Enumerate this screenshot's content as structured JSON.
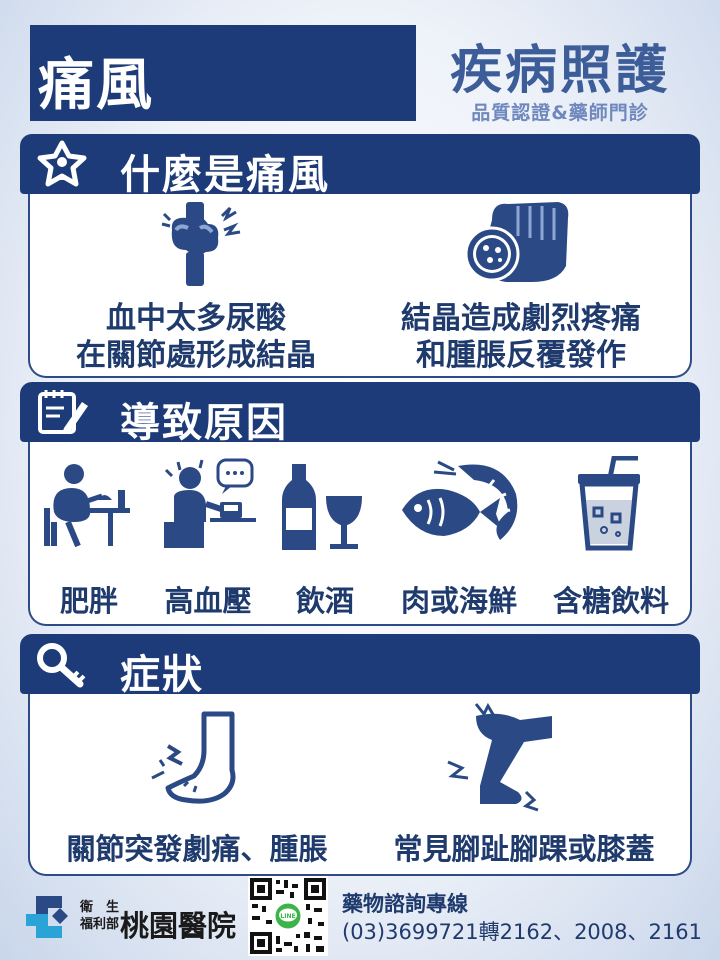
{
  "header": {
    "title": "痛風",
    "brand_title": "疾病照護",
    "brand_subtitle": "品質認證&藥師門診"
  },
  "sections": [
    {
      "title": "什麼是痛風",
      "icon": "star-person-icon",
      "items": [
        {
          "icon": "joint-pain-icon",
          "lines": [
            "血中太多尿酸",
            "在關節處形成結晶"
          ]
        },
        {
          "icon": "foot-crystal-icon",
          "lines": [
            "結晶造成劇烈疼痛",
            "和腫脹反覆發作"
          ]
        }
      ]
    },
    {
      "title": "導致原因",
      "icon": "notepad-pencil-icon",
      "items": [
        {
          "icon": "overeating-icon",
          "label": "肥胖"
        },
        {
          "icon": "blood-pressure-icon",
          "label": "高血壓"
        },
        {
          "icon": "wine-icon",
          "label": "飲酒"
        },
        {
          "icon": "fish-shrimp-icon",
          "label": "肉或海鮮"
        },
        {
          "icon": "sugary-drink-icon",
          "label": "含糖飲料"
        }
      ]
    },
    {
      "title": "症狀",
      "icon": "magnifier-icon",
      "items": [
        {
          "icon": "foot-pain-icon",
          "label": "關節突發劇痛、腫脹"
        },
        {
          "icon": "leg-pain-icon",
          "label": "常見腳趾腳踝或膝蓋"
        }
      ]
    }
  ],
  "footer": {
    "ministry_line1": "衛　生",
    "ministry_line2": "福利部",
    "hospital_name": "桃園醫院",
    "qr_icon": "qr-code-icon",
    "line_icon": "line-app-icon",
    "line_text": "LINE",
    "hotline_title": "藥物諮詢專線",
    "hotline_numbers": "(03)3699721轉2162、2008、2161"
  },
  "colors": {
    "navy": "#1d3b78",
    "icon_blue": "#2b4a85",
    "brand_blue": "#3d5d99",
    "line_green": "#3bb54a"
  }
}
